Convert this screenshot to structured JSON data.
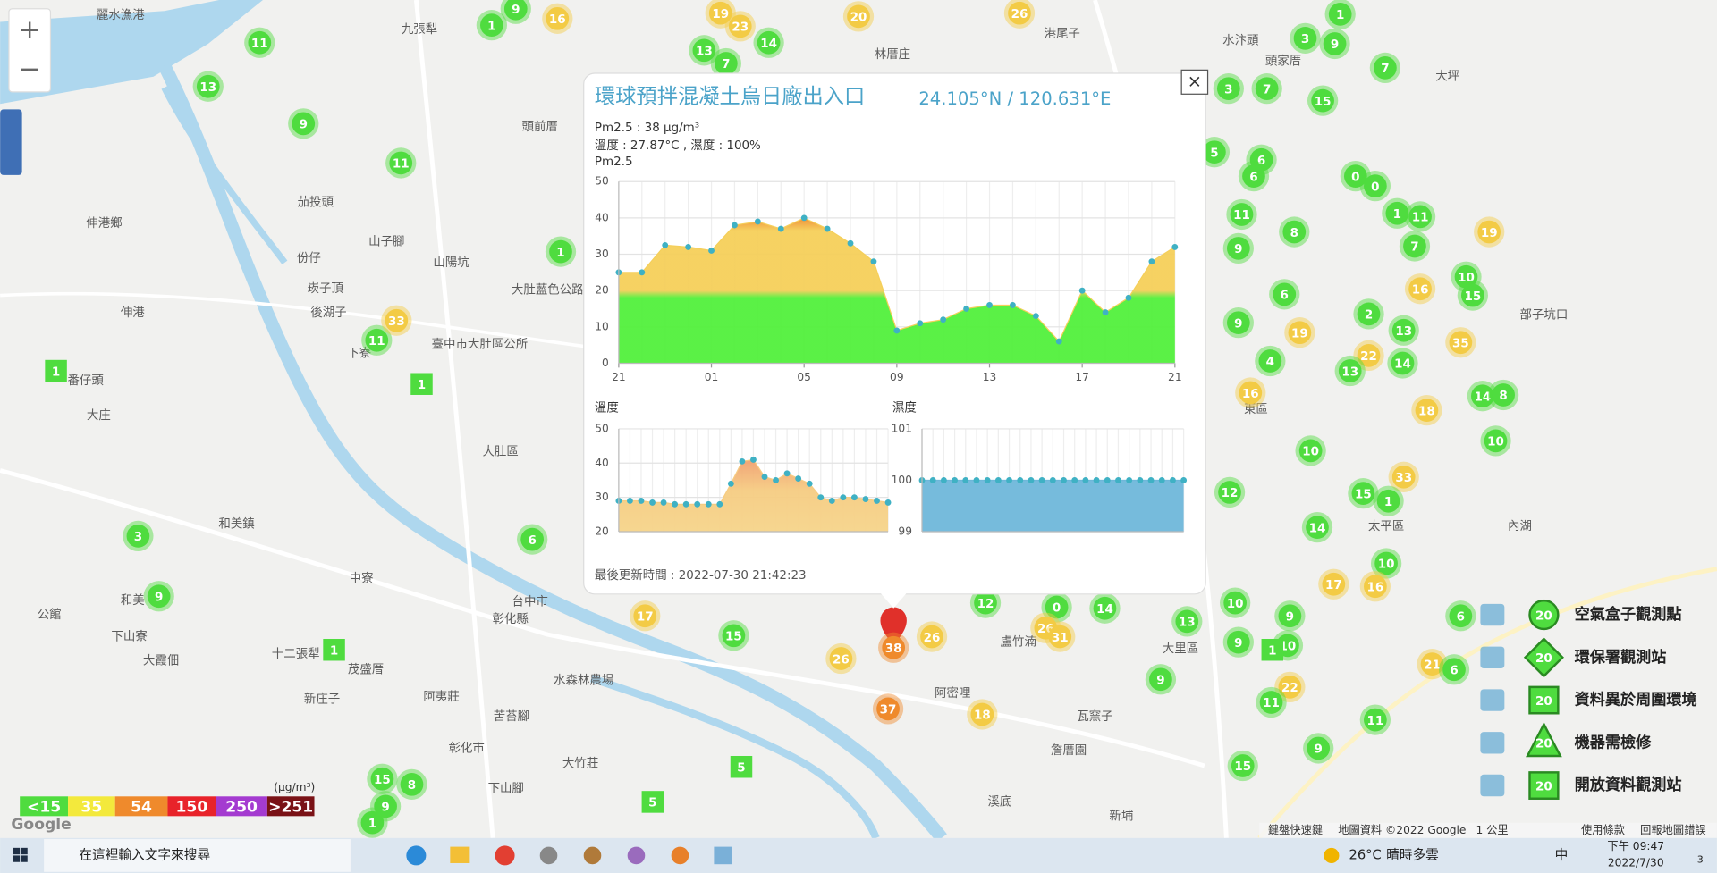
{
  "map": {
    "labels": [
      "麗水漁港",
      "九張犁",
      "林厝庄",
      "港尾子",
      "水汴頭",
      "頭家厝",
      "大坪",
      "頭前厝",
      "茄投頭",
      "伸港鄉",
      "山子腳",
      "份仔",
      "山陽坑",
      "崁子頂",
      "大肚藍色公路",
      "伸港",
      "後湖子",
      "臺中市大肚區公所",
      "下寮",
      "番仔頭",
      "大庄",
      "大肚區",
      "和美鎮",
      "和美",
      "中寮",
      "台中市",
      "彰化縣",
      "公館",
      "下山寮",
      "十二張犁",
      "茂盛厝",
      "大霞佃",
      "新庄子",
      "阿夷莊",
      "水森林農場",
      "苦苔腳",
      "彰化市",
      "大竹莊",
      "下山腳",
      "阿密哩",
      "盧竹湳",
      "瓦窯子",
      "詹厝園",
      "大里區",
      "東區",
      "太平區",
      "內湖",
      "部子坑口",
      "溪底",
      "新埔"
    ],
    "markers": [
      {
        "value": 11,
        "color": "#4fdc3f"
      },
      {
        "value": 13,
        "color": "#4fdc3f"
      },
      {
        "value": 9,
        "color": "#4fdc3f"
      },
      {
        "value": 11,
        "color": "#4fdc3f"
      },
      {
        "value": 1,
        "color": "#4fdc3f"
      },
      {
        "value": 9,
        "color": "#4fdc3f"
      },
      {
        "value": 16,
        "color": "#f3cb45"
      },
      {
        "value": 13,
        "color": "#4fdc3f"
      },
      {
        "value": 7,
        "color": "#4fdc3f"
      },
      {
        "value": 14,
        "color": "#4fdc3f"
      },
      {
        "value": 19,
        "color": "#f3cb45"
      },
      {
        "value": 23,
        "color": "#f3cb45"
      },
      {
        "value": 20,
        "color": "#f3cb45"
      },
      {
        "value": 26,
        "color": "#f3cb45"
      },
      {
        "value": 3,
        "color": "#4fdc3f"
      },
      {
        "value": 9,
        "color": "#4fdc3f"
      },
      {
        "value": 1,
        "color": "#4fdc3f"
      },
      {
        "value": 7,
        "color": "#4fdc3f"
      },
      {
        "value": 7,
        "color": "#4fdc3f"
      },
      {
        "value": 15,
        "color": "#4fdc3f"
      },
      {
        "value": 3,
        "color": "#4fdc3f"
      },
      {
        "value": 5,
        "color": "#4fdc3f"
      },
      {
        "value": 6,
        "color": "#4fdc3f"
      },
      {
        "value": 6,
        "color": "#4fdc3f"
      },
      {
        "value": 11,
        "color": "#4fdc3f"
      },
      {
        "value": 8,
        "color": "#4fdc3f"
      },
      {
        "value": 9,
        "color": "#4fdc3f"
      },
      {
        "value": 0,
        "color": "#4fdc3f"
      },
      {
        "value": 0,
        "color": "#4fdc3f"
      },
      {
        "value": 1,
        "color": "#4fdc3f"
      },
      {
        "value": 11,
        "color": "#4fdc3f"
      },
      {
        "value": 7,
        "color": "#4fdc3f"
      },
      {
        "value": 16,
        "color": "#f3cb45"
      },
      {
        "value": 10,
        "color": "#4fdc3f"
      },
      {
        "value": 15,
        "color": "#4fdc3f"
      },
      {
        "value": 19,
        "color": "#f3cb45"
      },
      {
        "value": 6,
        "color": "#4fdc3f"
      },
      {
        "value": 9,
        "color": "#4fdc3f"
      },
      {
        "value": 4,
        "color": "#4fdc3f"
      },
      {
        "value": 19,
        "color": "#f3cb45"
      },
      {
        "value": 2,
        "color": "#4fdc3f"
      },
      {
        "value": 13,
        "color": "#4fdc3f"
      },
      {
        "value": 35,
        "color": "#f3cb45"
      },
      {
        "value": 22,
        "color": "#f3cb45"
      },
      {
        "value": 13,
        "color": "#4fdc3f"
      },
      {
        "value": 14,
        "color": "#4fdc3f"
      },
      {
        "value": 16,
        "color": "#f3cb45"
      },
      {
        "value": 18,
        "color": "#f3cb45"
      },
      {
        "value": 14,
        "color": "#4fdc3f"
      },
      {
        "value": 8,
        "color": "#4fdc3f"
      },
      {
        "value": 10,
        "color": "#4fdc3f"
      },
      {
        "value": 10,
        "color": "#4fdc3f"
      },
      {
        "value": 33,
        "color": "#f3cb45"
      },
      {
        "value": 15,
        "color": "#4fdc3f"
      },
      {
        "value": 1,
        "color": "#4fdc3f"
      },
      {
        "value": 12,
        "color": "#4fdc3f"
      },
      {
        "value": 14,
        "color": "#4fdc3f"
      },
      {
        "value": 10,
        "color": "#4fdc3f"
      },
      {
        "value": 17,
        "color": "#f3cb45"
      },
      {
        "value": 16,
        "color": "#f3cb45"
      },
      {
        "value": 10,
        "color": "#4fdc3f"
      },
      {
        "value": 9,
        "color": "#4fdc3f"
      },
      {
        "value": 10,
        "color": "#4fdc3f"
      },
      {
        "value": 9,
        "color": "#4fdc3f"
      },
      {
        "value": 22,
        "color": "#f3cb45"
      },
      {
        "value": 11,
        "color": "#4fdc3f"
      },
      {
        "value": 21,
        "color": "#f3cb45"
      },
      {
        "value": 6,
        "color": "#4fdc3f"
      },
      {
        "value": 6,
        "color": "#4fdc3f"
      },
      {
        "value": 11,
        "color": "#4fdc3f"
      },
      {
        "value": 9,
        "color": "#4fdc3f"
      },
      {
        "value": 15,
        "color": "#4fdc3f"
      },
      {
        "value": 13,
        "color": "#4fdc3f"
      },
      {
        "value": 9,
        "color": "#4fdc3f"
      },
      {
        "value": 14,
        "color": "#4fdc3f"
      },
      {
        "value": 0,
        "color": "#4fdc3f"
      },
      {
        "value": 26,
        "color": "#f3cb45"
      },
      {
        "value": 31,
        "color": "#f3cb45"
      },
      {
        "value": 12,
        "color": "#4fdc3f"
      },
      {
        "value": 18,
        "color": "#f3cb45"
      },
      {
        "value": 26,
        "color": "#f3cb45"
      },
      {
        "value": 37,
        "color": "#ef8a2c"
      },
      {
        "value": 38,
        "color": "#ef8a2c"
      },
      {
        "value": 26,
        "color": "#f3cb45"
      },
      {
        "value": 15,
        "color": "#4fdc3f"
      },
      {
        "value": 17,
        "color": "#f3cb45"
      },
      {
        "value": 6,
        "color": "#4fdc3f"
      },
      {
        "value": 11,
        "color": "#4fdc3f"
      },
      {
        "value": 33,
        "color": "#f3cb45"
      },
      {
        "value": 1,
        "color": "#4fdc3f"
      },
      {
        "value": 3,
        "color": "#4fdc3f"
      },
      {
        "value": 9,
        "color": "#4fdc3f"
      },
      {
        "value": 15,
        "color": "#4fdc3f"
      },
      {
        "value": 8,
        "color": "#4fdc3f"
      },
      {
        "value": 1,
        "color": "#4fdc3f"
      },
      {
        "value": 9,
        "color": "#4fdc3f"
      }
    ],
    "square_markers": [
      1,
      1,
      1,
      5,
      5,
      1
    ],
    "zoom_in": "+",
    "zoom_out": "−",
    "attribution": [
      "鍵盤快速鍵",
      "地圖資料 ©2022 Google",
      "1 公里",
      "使用條款",
      "回報地圖錯誤"
    ],
    "google": "Google"
  },
  "popup": {
    "title": "環球預拌混凝土烏日廠出入口",
    "coords": "24.105°N / 120.631°E",
    "close": "×",
    "pm25_line": "Pm2.5 : 38 μg/m³",
    "env_line": "溫度 : 27.87°C , 濕度 : 100%",
    "updated": "最後更新時間 : 2022-07-30 21:42:23"
  },
  "chart_data": [
    {
      "type": "area",
      "title": "Pm2.5",
      "values": [
        25,
        25,
        32.5,
        32,
        31,
        38,
        39,
        37,
        40,
        37,
        33,
        28,
        9,
        11,
        12,
        15,
        16,
        16,
        13,
        6,
        20,
        14,
        18,
        28,
        32
      ],
      "xlim": [
        0,
        24
      ],
      "xticks": [
        {
          "value": 0,
          "label": "21"
        },
        {
          "value": 4,
          "label": "01"
        },
        {
          "value": 8,
          "label": "05"
        },
        {
          "value": 12,
          "label": "09"
        },
        {
          "value": 16,
          "label": "13"
        },
        {
          "value": 20,
          "label": "17"
        },
        {
          "value": 24,
          "label": "21"
        }
      ],
      "ylim": [
        0,
        50
      ],
      "yticks": [
        0,
        10,
        20,
        30,
        40,
        50
      ],
      "color": "#f5cf5a",
      "grid": true
    },
    {
      "type": "area",
      "title": "溫度",
      "values": [
        29,
        29,
        29,
        28.5,
        28.5,
        28,
        28,
        28,
        28,
        28,
        34,
        40.5,
        41,
        36,
        35,
        37,
        35.5,
        34,
        30,
        29,
        30,
        30,
        29.5,
        29,
        28.5
      ],
      "xlim": [
        0,
        24
      ],
      "ylim": [
        20,
        50
      ],
      "yticks": [
        20,
        30,
        40,
        50
      ],
      "color": "#f6cc82",
      "grid": true
    },
    {
      "type": "area",
      "title": "濕度",
      "values": [
        100,
        100,
        100,
        100,
        100,
        100,
        100,
        100,
        100,
        100,
        100,
        100,
        100,
        100,
        100,
        100,
        100,
        100,
        100,
        100,
        100,
        100,
        100,
        100,
        100
      ],
      "xlim": [
        0,
        24
      ],
      "ylim": [
        99,
        101
      ],
      "yticks": [
        99,
        100,
        101
      ],
      "color": "#6fb7da",
      "grid": true
    }
  ],
  "legend": {
    "unit": "(μg/m³)",
    "levels": [
      {
        "label": "<15",
        "color": "#4fdc3f"
      },
      {
        "label": "35",
        "color": "#f3e93c"
      },
      {
        "label": "54",
        "color": "#ef8a2c"
      },
      {
        "label": "150",
        "color": "#e8232a"
      },
      {
        "label": "250",
        "color": "#a43bd0"
      },
      {
        "label": ">251",
        "color": "#7a1216"
      }
    ],
    "sample": "20",
    "items": [
      "空氣盒子觀測點",
      "環保署觀測站",
      "資料異於周圍環境",
      "機器需檢修",
      "開放資料觀測站"
    ]
  },
  "taskbar": {
    "search": "在這裡輸入文字來搜尋",
    "temp": "26°C",
    "weather": "晴時多雲",
    "ime": "中",
    "time": "下午 09:47",
    "date": "2022/7/30",
    "notify": "3"
  }
}
